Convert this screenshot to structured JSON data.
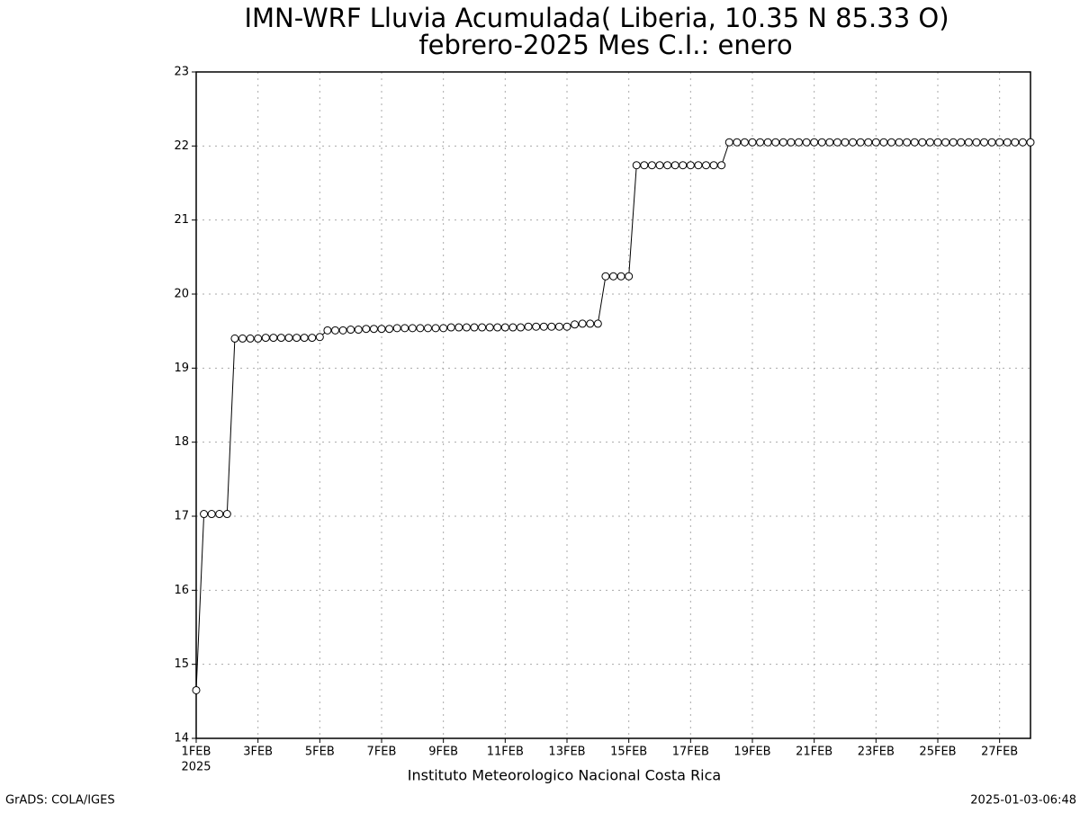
{
  "chart_data": {
    "type": "line",
    "title": "IMN-WRF  Lluvia Acumulada( Liberia, 10.35  N 85.33  O)",
    "subtitle": "febrero-2025 Mes C.I.: enero",
    "x_year_label": "2025",
    "footer": "Instituto Meteorologico Nacional Costa Rica",
    "credit": "GrADS: COLA/IGES",
    "timestamp": "2025-01-03-06:48",
    "x": [
      0,
      0.25,
      0.5,
      0.75,
      1,
      1.25,
      1.5,
      1.75,
      2,
      2.25,
      2.5,
      2.75,
      3,
      3.25,
      3.5,
      3.75,
      4,
      4.25,
      4.5,
      4.75,
      5,
      5.25,
      5.5,
      5.75,
      6,
      6.25,
      6.5,
      6.75,
      7,
      7.25,
      7.5,
      7.75,
      8,
      8.25,
      8.5,
      8.75,
      9,
      9.25,
      9.5,
      9.75,
      10,
      10.25,
      10.5,
      10.75,
      11,
      11.25,
      11.5,
      11.75,
      12,
      12.25,
      12.5,
      12.75,
      13,
      13.25,
      13.5,
      13.75,
      14,
      14.25,
      14.5,
      14.75,
      15,
      15.25,
      15.5,
      15.75,
      16,
      16.25,
      16.5,
      16.75,
      17,
      17.25,
      17.5,
      17.75,
      18,
      18.25,
      18.5,
      18.75,
      19,
      19.25,
      19.5,
      19.75,
      20,
      20.25,
      20.5,
      20.75,
      21,
      21.25,
      21.5,
      21.75,
      22,
      22.25,
      22.5,
      22.75,
      23,
      23.25,
      23.5,
      23.75,
      24,
      24.25,
      24.5,
      24.75,
      25,
      25.25,
      25.5,
      25.75,
      26,
      26.25,
      26.5,
      26.75,
      27
    ],
    "values": [
      14.65,
      17.03,
      17.03,
      17.03,
      17.03,
      19.4,
      19.4,
      19.4,
      19.4,
      19.41,
      19.41,
      19.41,
      19.41,
      19.41,
      19.41,
      19.41,
      19.42,
      19.51,
      19.51,
      19.51,
      19.52,
      19.52,
      19.53,
      19.53,
      19.53,
      19.53,
      19.54,
      19.54,
      19.54,
      19.54,
      19.54,
      19.54,
      19.54,
      19.55,
      19.55,
      19.55,
      19.55,
      19.55,
      19.55,
      19.55,
      19.55,
      19.55,
      19.55,
      19.56,
      19.56,
      19.56,
      19.56,
      19.56,
      19.56,
      19.59,
      19.6,
      19.6,
      19.6,
      20.24,
      20.24,
      20.24,
      20.24,
      21.74,
      21.74,
      21.74,
      21.74,
      21.74,
      21.74,
      21.74,
      21.74,
      21.74,
      21.74,
      21.74,
      21.74,
      22.05,
      22.05,
      22.05,
      22.05,
      22.05,
      22.05,
      22.05,
      22.05,
      22.05,
      22.05,
      22.05,
      22.05,
      22.05,
      22.05,
      22.05,
      22.05,
      22.05,
      22.05,
      22.05,
      22.05,
      22.05,
      22.05,
      22.05,
      22.05,
      22.05,
      22.05,
      22.05,
      22.05,
      22.05,
      22.05,
      22.05,
      22.05,
      22.05,
      22.05,
      22.05,
      22.05,
      22.05,
      22.05,
      22.05,
      22.05
    ],
    "color": "#000000",
    "xlim": [
      0,
      27
    ],
    "xticks": [
      {
        "value": 0,
        "label": "1FEB"
      },
      {
        "value": 2,
        "label": "3FEB"
      },
      {
        "value": 4,
        "label": "5FEB"
      },
      {
        "value": 6,
        "label": "7FEB"
      },
      {
        "value": 8,
        "label": "9FEB"
      },
      {
        "value": 10,
        "label": "11FEB"
      },
      {
        "value": 12,
        "label": "13FEB"
      },
      {
        "value": 14,
        "label": "15FEB"
      },
      {
        "value": 16,
        "label": "17FEB"
      },
      {
        "value": 18,
        "label": "19FEB"
      },
      {
        "value": 20,
        "label": "21FEB"
      },
      {
        "value": 22,
        "label": "23FEB"
      },
      {
        "value": 24,
        "label": "25FEB"
      },
      {
        "value": 26,
        "label": "27FEB"
      }
    ],
    "ylim": [
      14,
      23
    ],
    "yticks": [
      14,
      15,
      16,
      17,
      18,
      19,
      20,
      21,
      22,
      23
    ],
    "grid": true
  }
}
